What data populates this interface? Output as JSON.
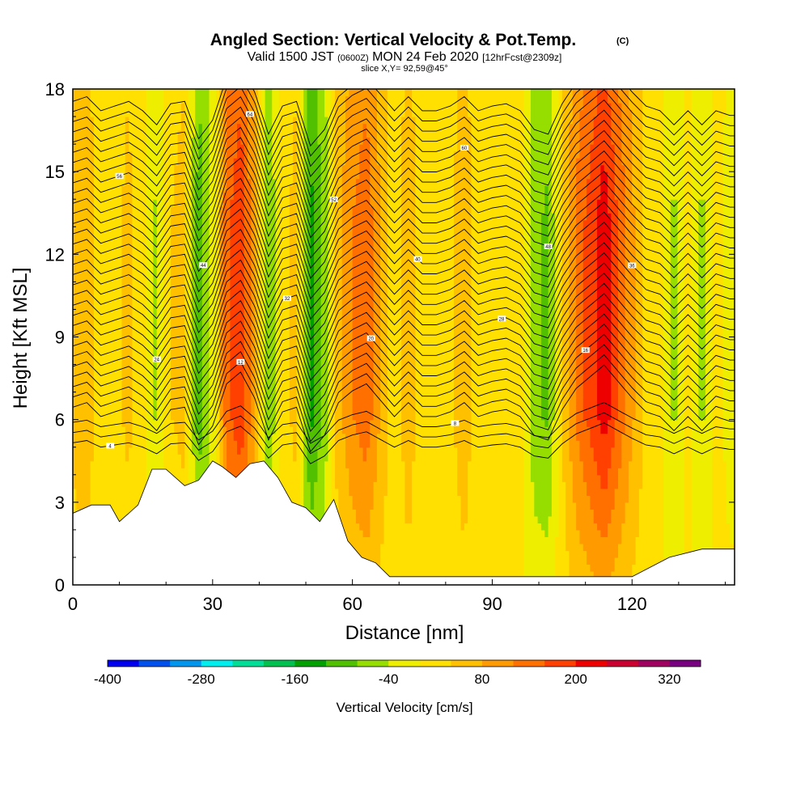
{
  "chart_data": {
    "type": "heatmap",
    "title": "Angled Section: Vertical Velocity & Pot.Temp.",
    "title_mark": "(C)",
    "subtitle_prefix": "Valid 1500 JST",
    "subtitle_utc": "(0600Z)",
    "subtitle_date": "MON 24 Feb 2020",
    "subtitle_fcst": "[12hrFcst@2309z]",
    "slice_info": "slice X,Y= 92,59@45°",
    "xlabel": "Distance [nm]",
    "ylabel": "Height [Kft MSL]",
    "xlim": [
      0,
      142
    ],
    "ylim": [
      0,
      18
    ],
    "x_ticks": [
      "0",
      "30",
      "60",
      "90",
      "120"
    ],
    "x_tick_values": [
      0,
      30,
      60,
      90,
      120
    ],
    "y_ticks": [
      "0",
      "3",
      "6",
      "9",
      "12",
      "15",
      "18"
    ],
    "y_tick_values": [
      0,
      3,
      6,
      9,
      12,
      15,
      18
    ],
    "colorbar": {
      "label": "Vertical Velocity [cm/s]",
      "min": -400,
      "max": 360,
      "step": 40,
      "tick_labels": [
        "-400",
        "-280",
        "-160",
        "-40",
        "80",
        "200",
        "320"
      ],
      "tick_values": [
        -400,
        -280,
        -160,
        -40,
        80,
        200,
        320
      ],
      "colors": [
        "#0000ee",
        "#0050ee",
        "#0096ee",
        "#00eeee",
        "#00dd96",
        "#00c050",
        "#00a000",
        "#50c000",
        "#96dd00",
        "#eeee00",
        "#ffe000",
        "#ffc000",
        "#ff9a00",
        "#ff7000",
        "#ff4000",
        "#ee0000",
        "#cc0030",
        "#a00060",
        "#780080"
      ]
    },
    "w_columns": {
      "x": [
        0,
        3,
        6,
        9,
        12,
        15,
        18,
        21,
        24,
        27,
        30,
        33,
        36,
        39,
        42,
        45,
        48,
        51,
        54,
        57,
        60,
        63,
        66,
        69,
        72,
        75,
        78,
        81,
        84,
        87,
        90,
        93,
        96,
        99,
        102,
        105,
        108,
        111,
        114,
        117,
        120,
        123,
        126,
        129,
        132,
        135,
        138,
        141
      ],
      "w": [
        40,
        60,
        0,
        20,
        40,
        0,
        -60,
        30,
        40,
        -120,
        -40,
        140,
        190,
        80,
        -100,
        20,
        40,
        -150,
        -80,
        60,
        110,
        140,
        70,
        0,
        60,
        0,
        0,
        20,
        60,
        0,
        20,
        30,
        0,
        -80,
        -100,
        30,
        120,
        170,
        220,
        150,
        80,
        20,
        0,
        -60,
        0,
        -60,
        0,
        -20
      ]
    },
    "terrain_kft": {
      "x": [
        0,
        4,
        8,
        10,
        12,
        14,
        17,
        20,
        24,
        27,
        30,
        32,
        35,
        38,
        41,
        44,
        47,
        50,
        53,
        56,
        59,
        62,
        65,
        68,
        71,
        75,
        85,
        95,
        105,
        113,
        120,
        128,
        135,
        142
      ],
      "h": [
        2.6,
        2.9,
        2.9,
        2.3,
        2.6,
        2.9,
        4.2,
        4.2,
        3.6,
        3.8,
        4.5,
        4.3,
        3.9,
        4.4,
        4.5,
        3.9,
        3.0,
        2.8,
        2.3,
        3.1,
        1.6,
        1.0,
        0.8,
        0.3,
        0.3,
        0.3,
        0.3,
        0.3,
        0.3,
        0.3,
        0.3,
        1.0,
        1.3,
        1.3
      ]
    },
    "theta_contours_c": [
      4,
      6,
      8,
      10,
      12,
      14,
      16,
      18,
      20,
      22,
      24,
      26,
      28,
      30,
      32,
      34,
      36,
      38,
      40,
      42,
      44,
      46,
      48,
      50,
      52,
      54,
      56,
      58,
      60,
      62,
      64,
      66,
      68,
      70
    ]
  }
}
